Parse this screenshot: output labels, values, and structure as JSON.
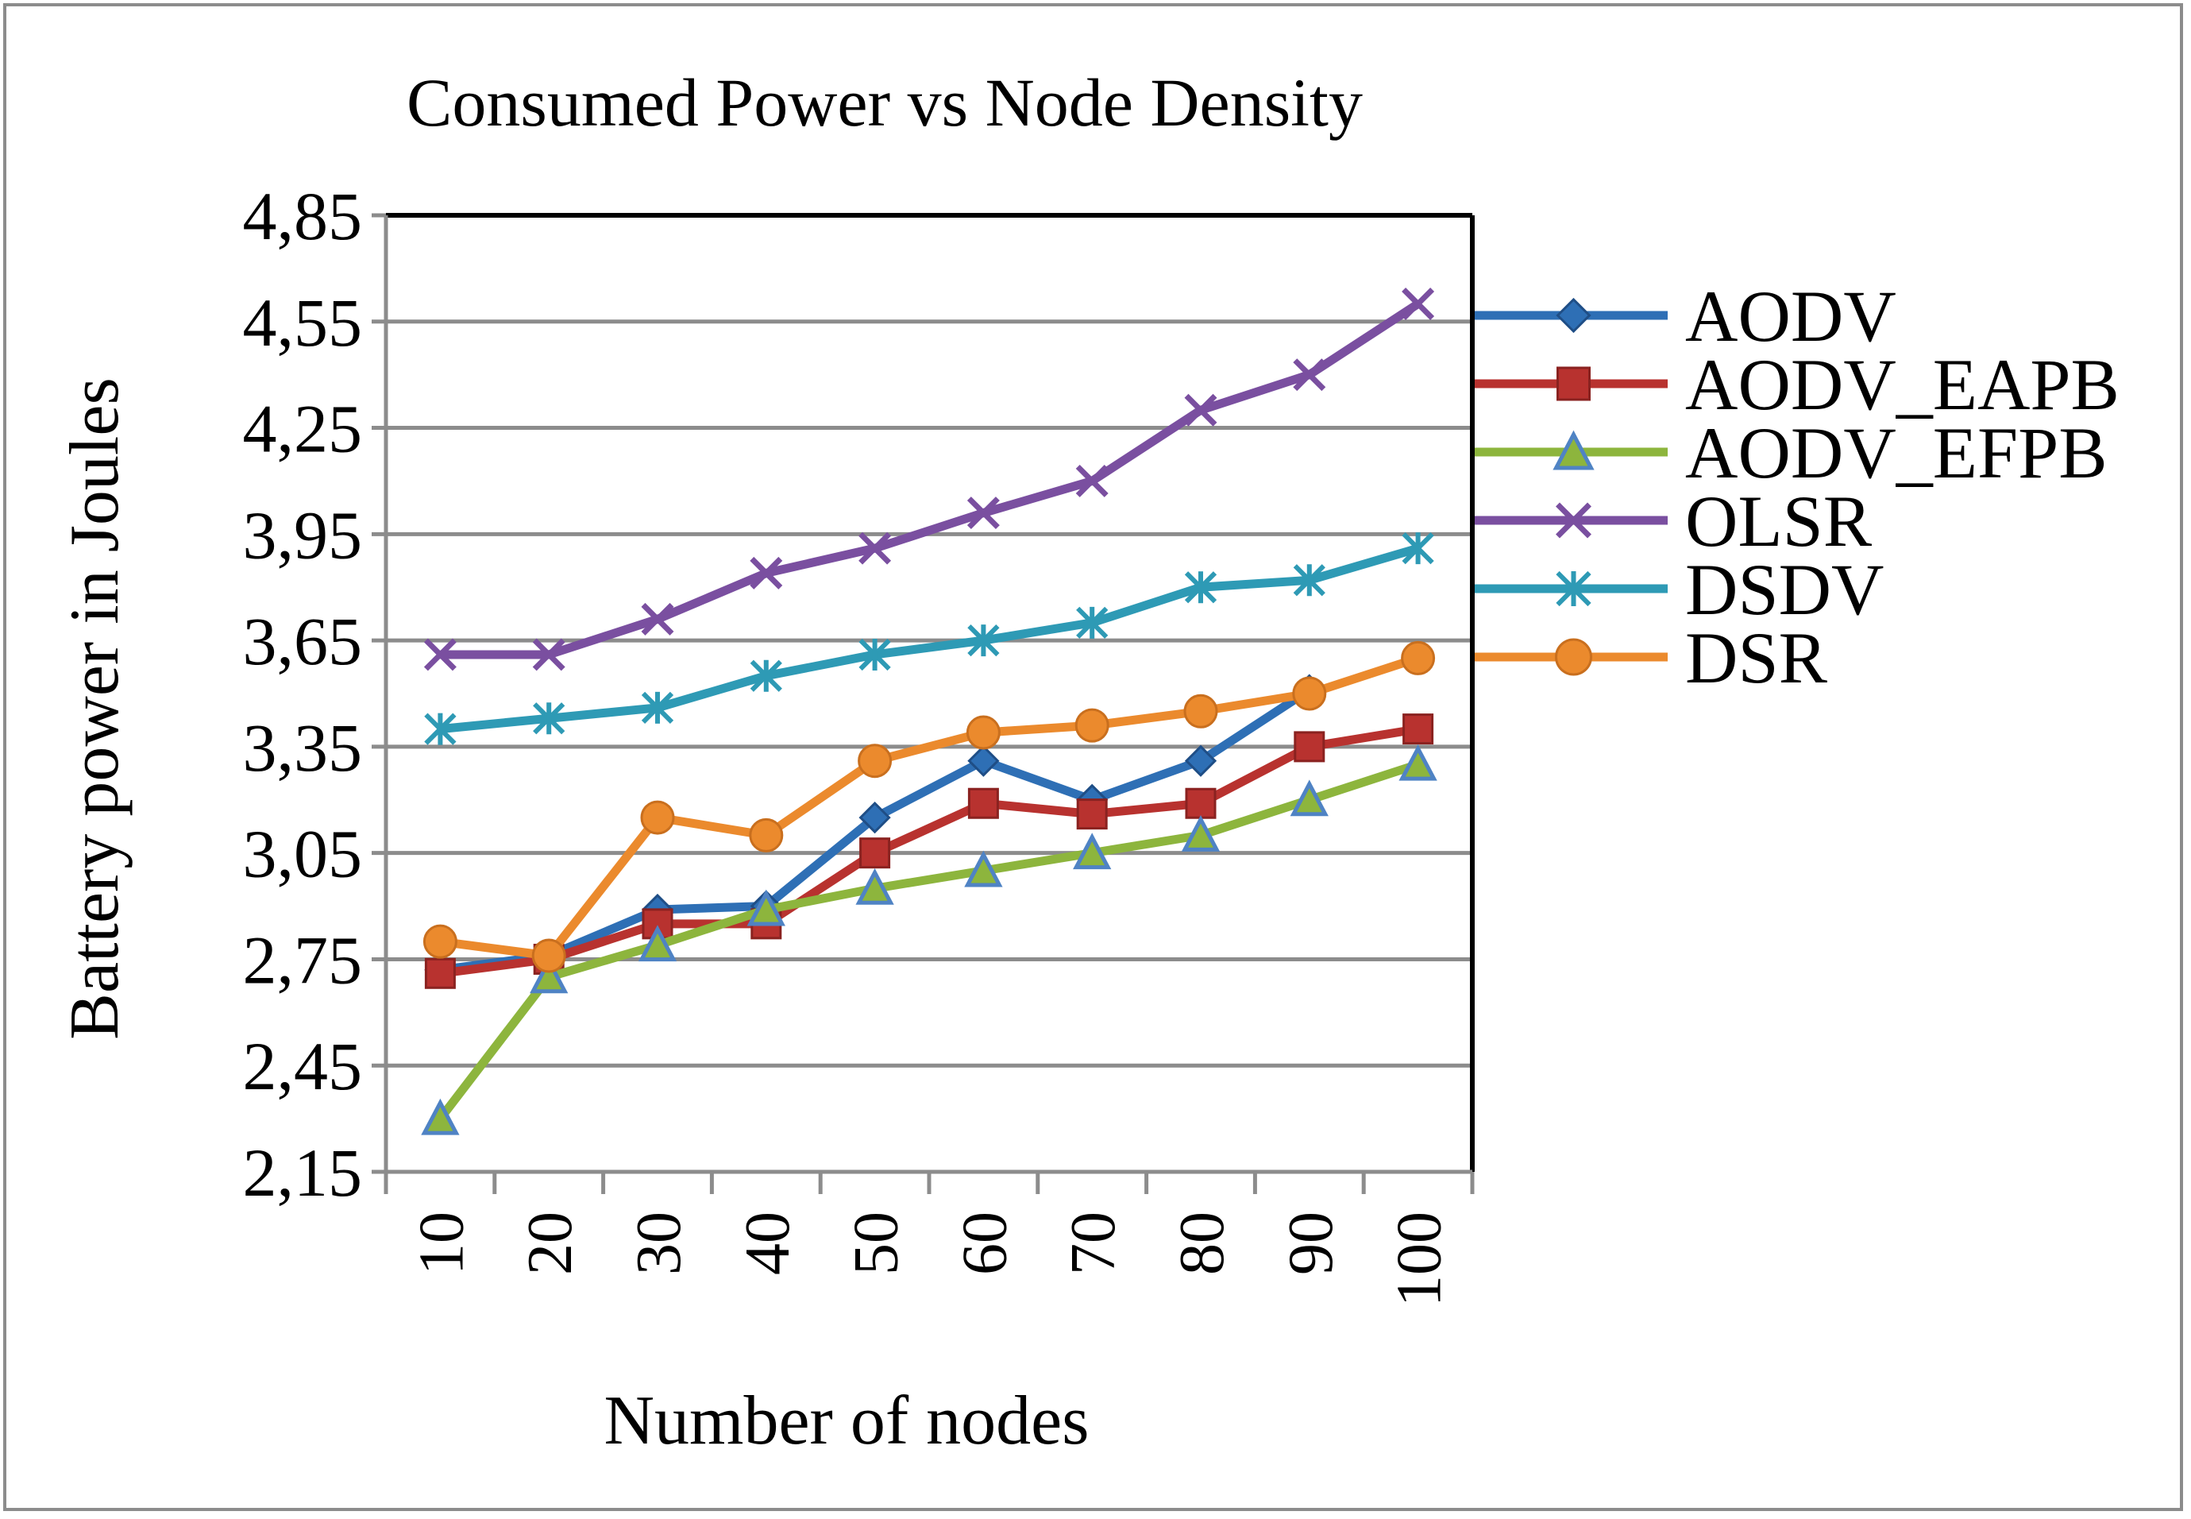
{
  "chart_data": {
    "type": "line",
    "title": "Consumed Power vs Node Density",
    "xlabel": "Number of nodes",
    "ylabel": "Battery power in Joules",
    "categories": [
      "10",
      "20",
      "30",
      "40",
      "50",
      "60",
      "70",
      "80",
      "90",
      "100"
    ],
    "y_ticks": [
      "2,15",
      "2,45",
      "2,75",
      "3,05",
      "3,35",
      "3,65",
      "3,95",
      "4,25",
      "4,55",
      "4,85"
    ],
    "ylim": [
      2.15,
      4.85
    ],
    "grid": true,
    "legend_position": "right",
    "series": [
      {
        "name": "AODV",
        "color": "#2e6fb5",
        "marker": "diamond",
        "values": [
          2.72,
          2.76,
          2.89,
          2.9,
          3.15,
          3.31,
          3.2,
          3.31,
          3.51,
          null
        ]
      },
      {
        "name": "AODV_EAPB",
        "color": "#b8322f",
        "marker": "square",
        "values": [
          2.71,
          2.75,
          2.85,
          2.85,
          3.05,
          3.19,
          3.16,
          3.19,
          3.35,
          3.4
        ]
      },
      {
        "name": "AODV_EFPB",
        "color": "#8db53d",
        "marker": "triangle",
        "values": [
          2.3,
          2.7,
          2.79,
          2.89,
          2.95,
          3.0,
          3.05,
          3.1,
          3.2,
          3.3
        ]
      },
      {
        "name": "OLSR",
        "color": "#7a4fa0",
        "marker": "x",
        "values": [
          3.61,
          3.61,
          3.71,
          3.84,
          3.91,
          4.01,
          4.1,
          4.3,
          4.4,
          4.6
        ]
      },
      {
        "name": "DSDV",
        "color": "#2e9ab5",
        "marker": "star",
        "values": [
          3.4,
          3.43,
          3.46,
          3.55,
          3.61,
          3.65,
          3.7,
          3.8,
          3.82,
          3.91
        ]
      },
      {
        "name": "DSR",
        "color": "#eb8a2d",
        "marker": "circle",
        "values": [
          2.8,
          2.76,
          3.15,
          3.1,
          3.31,
          3.39,
          3.41,
          3.45,
          3.5,
          3.6
        ]
      }
    ]
  }
}
